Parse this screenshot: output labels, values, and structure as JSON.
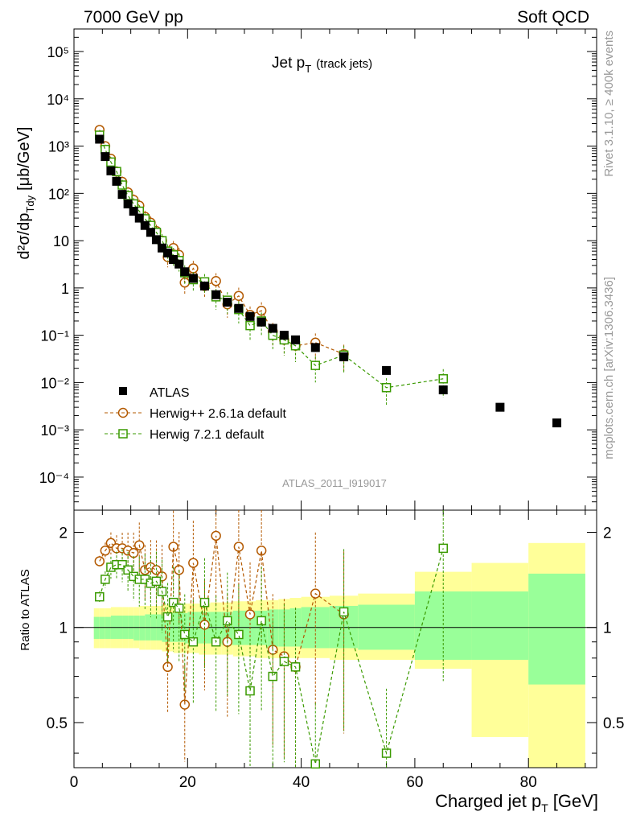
{
  "header": {
    "left": "7000 GeV pp",
    "right": "Soft QCD"
  },
  "side": {
    "rivet": "Rivet 3.1.10, ≥ 400k events",
    "mcplots": "mcplots.cern.ch [arXiv:1306.3436]"
  },
  "colors": {
    "atlas": "#000000",
    "herwigpp": "#b35900",
    "herwig7": "#3a9a00",
    "band_yellow": "#ffff99",
    "band_green": "#99ff99"
  },
  "chart_data": {
    "type": "scatter",
    "title": "Jet p",
    "title_sub": "T",
    "title_note": "(track jets)",
    "analysis": "ATLAS_2011_I919017",
    "xlabel": "Charged jet p",
    "xlabel_sub": "T",
    "xlabel_unit": "[GeV]",
    "ylabel": "d²σ/dp",
    "ylabel_sub": "Tdy",
    "ylabel_unit": "[μb/GeV]",
    "ratio_ylabel": "Ratio to ATLAS",
    "xlim": [
      0,
      92
    ],
    "ylim": [
      2e-05,
      300000
    ],
    "ratio_ylim": [
      0.36,
      2.35
    ],
    "x_ticks": [
      "0",
      "20",
      "40",
      "60",
      "80"
    ],
    "y_ticks": [
      "10⁻⁴",
      "10⁻³",
      "10⁻²",
      "10⁻¹",
      "1",
      "10",
      "10²",
      "10³",
      "10⁴",
      "10⁵"
    ],
    "ratio_ticks": [
      "0.5",
      "1",
      "2"
    ],
    "legend": [
      "ATLAS",
      "Herwig++ 2.6.1a default",
      "Herwig 7.2.1 default"
    ],
    "atlas": {
      "x": [
        4.5,
        5.5,
        6.5,
        7.5,
        8.5,
        9.5,
        10.5,
        11.5,
        12.5,
        13.5,
        14.5,
        15.5,
        16.5,
        17.5,
        18.5,
        19.5,
        21,
        23,
        25,
        27,
        29,
        31,
        33,
        35,
        37,
        39,
        42.5,
        47.5,
        55,
        65,
        75,
        85
      ],
      "y": [
        1400,
        600,
        300,
        180,
        95,
        60,
        42,
        30,
        21,
        15,
        10.5,
        7,
        5.5,
        4,
        3.2,
        2.2,
        1.6,
        1.1,
        0.72,
        0.5,
        0.37,
        0.25,
        0.19,
        0.14,
        0.1,
        0.08,
        0.055,
        0.035,
        0.018,
        0.007,
        0.003,
        0.0014
      ]
    },
    "herwigpp": {
      "x": [
        4.5,
        5.5,
        6.5,
        7.5,
        8.5,
        9.5,
        10.5,
        11.5,
        12.5,
        13.5,
        14.5,
        15.5,
        16.5,
        17.5,
        18.5,
        19.5,
        21,
        23,
        25,
        27,
        29,
        31,
        33,
        35,
        37,
        39,
        42.5,
        47.5
      ],
      "y": [
        2200,
        1000,
        540,
        290,
        175,
        105,
        73,
        55,
        32,
        24,
        16,
        10,
        4.5,
        7,
        5,
        1.3,
        2.6,
        1.1,
        1.4,
        0.45,
        0.68,
        0.27,
        0.33,
        0.12,
        0.08,
        0.06,
        0.07,
        0.04
      ],
      "ratio": [
        1.62,
        1.75,
        1.85,
        1.78,
        1.78,
        1.75,
        1.72,
        1.82,
        1.52,
        1.55,
        1.52,
        1.45,
        0.75,
        1.8,
        1.52,
        0.57,
        1.6,
        1.02,
        1.95,
        0.9,
        1.8,
        1.1,
        1.75,
        0.85,
        0.81,
        0.75,
        1.28,
        1.1
      ]
    },
    "herwig7": {
      "x": [
        4.5,
        5.5,
        6.5,
        7.5,
        8.5,
        9.5,
        10.5,
        11.5,
        12.5,
        13.5,
        14.5,
        15.5,
        16.5,
        17.5,
        18.5,
        19.5,
        21,
        23,
        25,
        27,
        29,
        31,
        33,
        35,
        37,
        39,
        42.5,
        47.5,
        55,
        65
      ],
      "y": [
        1700,
        850,
        460,
        290,
        150,
        90,
        60,
        42,
        29,
        21,
        15,
        10,
        6,
        5,
        3.8,
        2.1,
        1.5,
        1.35,
        0.65,
        0.55,
        0.35,
        0.16,
        0.2,
        0.1,
        0.08,
        0.06,
        0.023,
        0.038,
        0.0078,
        0.012
      ],
      "ratio": [
        1.25,
        1.42,
        1.55,
        1.58,
        1.58,
        1.52,
        1.45,
        1.42,
        1.42,
        1.38,
        1.4,
        1.3,
        1.08,
        1.2,
        1.15,
        0.95,
        0.9,
        1.2,
        0.9,
        1.05,
        0.95,
        0.63,
        1.05,
        0.7,
        0.78,
        0.75,
        0.37,
        1.12,
        0.4,
        1.78
      ]
    },
    "ratio_bands": {
      "edges": [
        3.5,
        4.5,
        5.5,
        6.5,
        7.5,
        8.5,
        9.5,
        10.5,
        11.5,
        12.5,
        13.5,
        14.5,
        15.5,
        16.5,
        17.5,
        18.5,
        19.5,
        20,
        22,
        24,
        26,
        28,
        30,
        32,
        34,
        36,
        38,
        40,
        45,
        50,
        60,
        70,
        80,
        90
      ],
      "yellow_lo": [
        0.86,
        0.86,
        0.86,
        0.86,
        0.86,
        0.86,
        0.86,
        0.86,
        0.85,
        0.85,
        0.85,
        0.85,
        0.84,
        0.84,
        0.83,
        0.83,
        0.83,
        0.83,
        0.82,
        0.82,
        0.82,
        0.81,
        0.81,
        0.8,
        0.8,
        0.8,
        0.8,
        0.8,
        0.79,
        0.79,
        0.74,
        0.45,
        0.34
      ],
      "yellow_hi": [
        1.15,
        1.15,
        1.15,
        1.16,
        1.16,
        1.16,
        1.16,
        1.16,
        1.17,
        1.17,
        1.17,
        1.17,
        1.18,
        1.18,
        1.18,
        1.18,
        1.19,
        1.19,
        1.19,
        1.2,
        1.2,
        1.21,
        1.21,
        1.22,
        1.22,
        1.23,
        1.24,
        1.25,
        1.26,
        1.28,
        1.5,
        1.6,
        1.85
      ],
      "green_lo": [
        0.92,
        0.92,
        0.92,
        0.92,
        0.92,
        0.92,
        0.92,
        0.91,
        0.91,
        0.91,
        0.91,
        0.91,
        0.9,
        0.9,
        0.9,
        0.9,
        0.89,
        0.89,
        0.89,
        0.89,
        0.88,
        0.88,
        0.88,
        0.88,
        0.87,
        0.87,
        0.87,
        0.86,
        0.86,
        0.85,
        0.79,
        0.79,
        0.66
      ],
      "green_hi": [
        1.08,
        1.08,
        1.08,
        1.09,
        1.09,
        1.09,
        1.09,
        1.09,
        1.09,
        1.1,
        1.1,
        1.1,
        1.1,
        1.11,
        1.11,
        1.11,
        1.11,
        1.12,
        1.12,
        1.12,
        1.12,
        1.13,
        1.13,
        1.13,
        1.14,
        1.14,
        1.15,
        1.16,
        1.17,
        1.18,
        1.3,
        1.3,
        1.48
      ]
    }
  }
}
